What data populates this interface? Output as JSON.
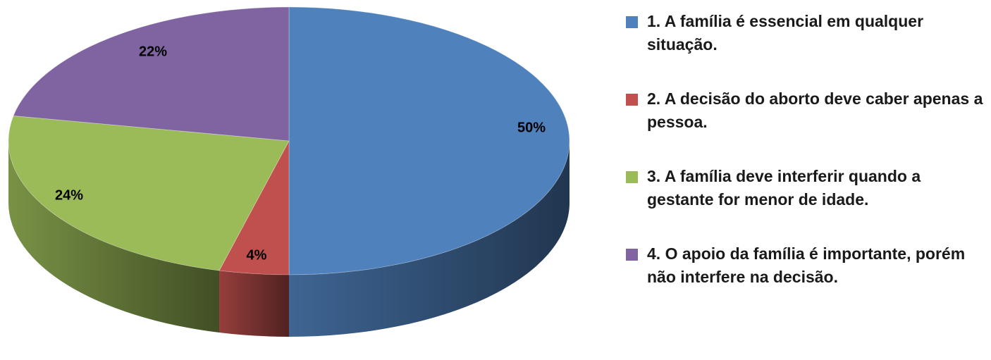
{
  "chart_data": {
    "type": "pie",
    "title": "",
    "three_d": true,
    "legend_position": "right",
    "categories": [
      "1. A família é essencial em qualquer situação.",
      "2. A decisão do aborto deve caber apenas a pessoa.",
      "3. A família deve interferir quando a gestante for menor de idade.",
      "4. O apoio da família é importante, porém não interfere na decisão."
    ],
    "values": [
      50,
      4,
      24,
      22
    ],
    "data_labels": [
      "50%",
      "4%",
      "24%",
      "22%"
    ],
    "colors": [
      "#4f81bd",
      "#c0504d",
      "#9bbb59",
      "#8064a2"
    ]
  }
}
